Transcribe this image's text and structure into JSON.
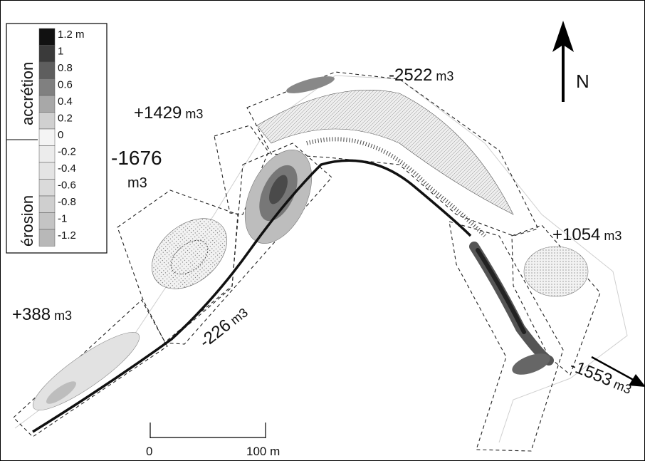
{
  "legend": {
    "accretion_label": "accrétion",
    "erosion_label": "érosion",
    "entries": [
      {
        "label": "1.2 m",
        "fill": "#111111"
      },
      {
        "label": "1",
        "fill": "#3a3a3a"
      },
      {
        "label": "0.8",
        "fill": "#5e5e5e"
      },
      {
        "label": "0.6",
        "fill": "#808080"
      },
      {
        "label": "0.4",
        "fill": "#a8a8a8"
      },
      {
        "label": "0.2",
        "fill": "#d0d0d0"
      },
      {
        "label": "0",
        "fill": "#f4f4f4"
      },
      {
        "label": "-0.2",
        "fill": "#ececec"
      },
      {
        "label": "-0.4",
        "fill": "#e4e4e4"
      },
      {
        "label": "-0.6",
        "fill": "#dadada"
      },
      {
        "label": "-0.8",
        "fill": "#cfcfcf"
      },
      {
        "label": "-1",
        "fill": "#c4c4c4"
      },
      {
        "label": "-1.2",
        "fill": "#b8b8b8"
      }
    ]
  },
  "north": {
    "label": "N"
  },
  "scale": {
    "start_label": "0",
    "end_label": "100 m"
  },
  "volumes": [
    {
      "value": "+388",
      "unit": "m3"
    },
    {
      "value": "-1676",
      "unit": "m3"
    },
    {
      "value": "+1429",
      "unit": "m3"
    },
    {
      "value": "-2522",
      "unit": "m3"
    },
    {
      "value": "+1054",
      "unit": "m3"
    },
    {
      "value": "-1553",
      "unit": "m3"
    },
    {
      "value": "-226",
      "unit": "m3"
    }
  ]
}
